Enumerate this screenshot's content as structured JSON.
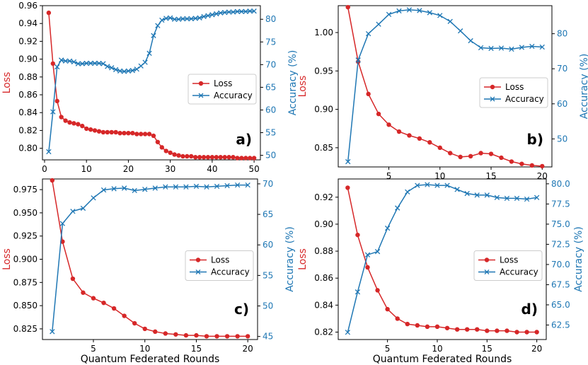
{
  "colors": {
    "loss": "#d62728",
    "accuracy": "#1f77b4"
  },
  "common": {
    "xlabel": "Quantum Federated Rounds",
    "loss_label": "Loss",
    "acc_label": "Accuracy (%)",
    "legend_loss": "Loss",
    "legend_acc": "Accuracy"
  },
  "chart_data": [
    {
      "type": "line",
      "panel": "a)",
      "legend_position": "center-right",
      "x": [
        1,
        2,
        3,
        4,
        5,
        6,
        7,
        8,
        9,
        10,
        11,
        12,
        13,
        14,
        15,
        16,
        17,
        18,
        19,
        20,
        21,
        22,
        23,
        24,
        25,
        26,
        27,
        28,
        29,
        30,
        31,
        32,
        33,
        34,
        35,
        36,
        37,
        38,
        39,
        40,
        41,
        42,
        43,
        44,
        45,
        46,
        47,
        48,
        49,
        50
      ],
      "xlim": [
        -0.5,
        51.5
      ],
      "xticks": [
        0,
        10,
        20,
        30,
        40,
        50
      ],
      "ylim_loss": [
        0.787,
        0.96
      ],
      "yticks_loss": [
        0.8,
        0.82,
        0.84,
        0.86,
        0.88,
        0.9,
        0.92,
        0.94,
        0.96
      ],
      "ylim_acc": [
        49.0,
        83.0
      ],
      "yticks_acc": [
        50,
        55,
        60,
        65,
        70,
        75,
        80
      ],
      "series": [
        {
          "name": "Loss",
          "axis": "left",
          "marker": "o",
          "values": [
            0.952,
            0.895,
            0.853,
            0.835,
            0.831,
            0.829,
            0.828,
            0.827,
            0.825,
            0.822,
            0.821,
            0.82,
            0.819,
            0.818,
            0.818,
            0.818,
            0.818,
            0.817,
            0.817,
            0.817,
            0.817,
            0.816,
            0.816,
            0.816,
            0.816,
            0.814,
            0.807,
            0.801,
            0.797,
            0.795,
            0.793,
            0.792,
            0.791,
            0.791,
            0.791,
            0.79,
            0.79,
            0.79,
            0.79,
            0.79,
            0.79,
            0.79,
            0.79,
            0.79,
            0.79,
            0.789,
            0.789,
            0.789,
            0.789,
            0.789
          ]
        },
        {
          "name": "Accuracy",
          "axis": "right",
          "marker": "x",
          "values": [
            50.8,
            59.6,
            69.5,
            71.0,
            70.8,
            70.8,
            70.6,
            70.2,
            70.2,
            70.3,
            70.3,
            70.3,
            70.3,
            70.2,
            69.6,
            69.3,
            68.9,
            68.6,
            68.5,
            68.6,
            68.7,
            69.0,
            69.7,
            70.5,
            72.5,
            76.4,
            78.6,
            79.8,
            80.2,
            80.3,
            80.0,
            80.0,
            80.1,
            80.1,
            80.1,
            80.2,
            80.3,
            80.6,
            80.8,
            81.0,
            81.2,
            81.4,
            81.5,
            81.6,
            81.6,
            81.7,
            81.7,
            81.7,
            81.8,
            81.8
          ]
        }
      ]
    },
    {
      "type": "line",
      "panel": "b)",
      "legend_position": "center-right",
      "x": [
        1,
        2,
        3,
        4,
        5,
        6,
        7,
        8,
        9,
        10,
        11,
        12,
        13,
        14,
        15,
        16,
        17,
        18,
        19,
        20
      ],
      "xlim": [
        0.05,
        20.95
      ],
      "xticks": [
        5,
        10,
        15,
        20
      ],
      "ylim_loss": [
        0.825,
        1.035
      ],
      "yticks_loss": [
        0.85,
        0.9,
        0.95,
        1.0
      ],
      "ylim_acc": [
        42.0,
        88.0
      ],
      "yticks_acc": [
        50,
        60,
        70,
        80
      ],
      "series": [
        {
          "name": "Loss",
          "axis": "left",
          "marker": "o",
          "values": [
            1.033,
            0.962,
            0.92,
            0.894,
            0.88,
            0.871,
            0.866,
            0.862,
            0.857,
            0.85,
            0.843,
            0.838,
            0.839,
            0.843,
            0.842,
            0.837,
            0.832,
            0.829,
            0.827,
            0.826
          ]
        },
        {
          "name": "Accuracy",
          "axis": "right",
          "marker": "x",
          "values": [
            43.5,
            72.5,
            80.0,
            82.7,
            85.5,
            86.5,
            86.8,
            86.6,
            86.0,
            85.2,
            83.5,
            80.8,
            78.0,
            76.0,
            75.8,
            75.9,
            75.6,
            76.1,
            76.4,
            76.2
          ]
        }
      ]
    },
    {
      "type": "line",
      "panel": "c)",
      "legend_position": "center-right",
      "x": [
        1,
        2,
        3,
        4,
        5,
        6,
        7,
        8,
        9,
        10,
        11,
        12,
        13,
        14,
        15,
        16,
        17,
        18,
        19,
        20
      ],
      "xlim": [
        0.05,
        20.95
      ],
      "xticks": [
        5,
        10,
        15,
        20
      ],
      "ylim_loss": [
        0.8135,
        0.9865
      ],
      "yticks_loss": [
        0.825,
        0.85,
        0.875,
        0.9,
        0.925,
        0.95,
        0.975
      ],
      "ylim_acc": [
        44.5,
        70.8
      ],
      "yticks_acc": [
        45,
        50,
        55,
        60,
        65,
        70
      ],
      "series": [
        {
          "name": "Loss",
          "axis": "left",
          "marker": "o",
          "values": [
            0.985,
            0.919,
            0.879,
            0.864,
            0.858,
            0.853,
            0.847,
            0.839,
            0.831,
            0.825,
            0.822,
            0.82,
            0.819,
            0.818,
            0.818,
            0.817,
            0.817,
            0.817,
            0.817,
            0.817
          ]
        },
        {
          "name": "Accuracy",
          "axis": "right",
          "marker": "x",
          "values": [
            45.8,
            63.5,
            65.5,
            66.0,
            67.7,
            69.0,
            69.2,
            69.3,
            68.9,
            69.1,
            69.3,
            69.5,
            69.5,
            69.5,
            69.6,
            69.5,
            69.6,
            69.7,
            69.8,
            69.8
          ]
        }
      ]
    },
    {
      "type": "line",
      "panel": "d)",
      "legend_position": "center-right",
      "x": [
        1,
        2,
        3,
        4,
        5,
        6,
        7,
        8,
        9,
        10,
        11,
        12,
        13,
        14,
        15,
        16,
        17,
        18,
        19,
        20
      ],
      "xlim": [
        0.05,
        20.95
      ],
      "xticks": [
        5,
        10,
        15,
        20
      ],
      "ylim_loss": [
        0.8145,
        0.9335
      ],
      "yticks_loss": [
        0.82,
        0.84,
        0.86,
        0.88,
        0.9,
        0.92
      ],
      "ylim_acc": [
        60.7,
        80.6
      ],
      "yticks_acc": [
        62.5,
        65.0,
        67.5,
        70.0,
        72.5,
        75.0,
        77.5,
        80.0
      ],
      "series": [
        {
          "name": "Loss",
          "axis": "left",
          "marker": "o",
          "values": [
            0.927,
            0.892,
            0.868,
            0.851,
            0.837,
            0.83,
            0.826,
            0.825,
            0.824,
            0.824,
            0.823,
            0.822,
            0.822,
            0.822,
            0.821,
            0.821,
            0.821,
            0.82,
            0.82,
            0.82
          ]
        },
        {
          "name": "Accuracy",
          "axis": "right",
          "marker": "x",
          "values": [
            61.6,
            66.6,
            71.2,
            71.6,
            74.5,
            77.0,
            79.0,
            79.8,
            79.9,
            79.8,
            79.8,
            79.3,
            78.8,
            78.6,
            78.6,
            78.3,
            78.2,
            78.2,
            78.1,
            78.3
          ]
        }
      ]
    }
  ]
}
